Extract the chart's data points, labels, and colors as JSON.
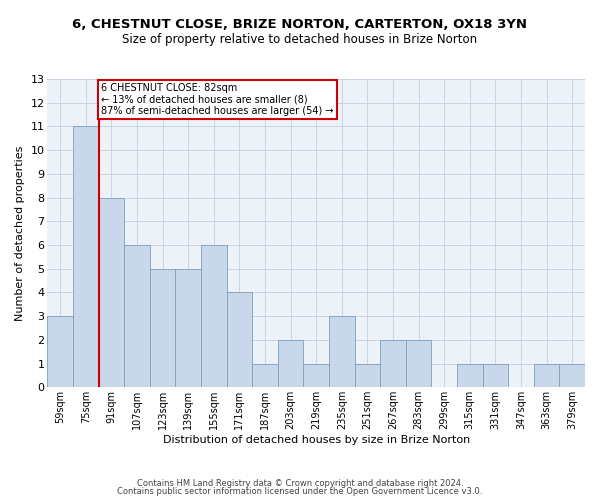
{
  "title_line1": "6, CHESTNUT CLOSE, BRIZE NORTON, CARTERTON, OX18 3YN",
  "title_line2": "Size of property relative to detached houses in Brize Norton",
  "xlabel": "Distribution of detached houses by size in Brize Norton",
  "ylabel": "Number of detached properties",
  "categories": [
    "59sqm",
    "75sqm",
    "91sqm",
    "107sqm",
    "123sqm",
    "139sqm",
    "155sqm",
    "171sqm",
    "187sqm",
    "203sqm",
    "219sqm",
    "235sqm",
    "251sqm",
    "267sqm",
    "283sqm",
    "299sqm",
    "315sqm",
    "331sqm",
    "347sqm",
    "363sqm",
    "379sqm"
  ],
  "values": [
    3,
    11,
    8,
    6,
    5,
    5,
    6,
    4,
    1,
    2,
    1,
    3,
    1,
    2,
    2,
    0,
    1,
    1,
    0,
    1,
    1
  ],
  "bar_color": "#c8d8ea",
  "bar_edge_color": "#7aa0c0",
  "subject_line_label": "6 CHESTNUT CLOSE: 82sqm",
  "annotation_line2": "← 13% of detached houses are smaller (8)",
  "annotation_line3": "87% of semi-detached houses are larger (54) →",
  "annotation_box_color": "#ffffff",
  "annotation_box_edge": "#cc0000",
  "vline_color": "#cc0000",
  "ylim": [
    0,
    13
  ],
  "yticks": [
    0,
    1,
    2,
    3,
    4,
    5,
    6,
    7,
    8,
    9,
    10,
    11,
    12,
    13
  ],
  "footer_line1": "Contains HM Land Registry data © Crown copyright and database right 2024.",
  "footer_line2": "Contains public sector information licensed under the Open Government Licence v3.0.",
  "grid_color": "#c8d4e4",
  "background_color": "#edf2f8"
}
